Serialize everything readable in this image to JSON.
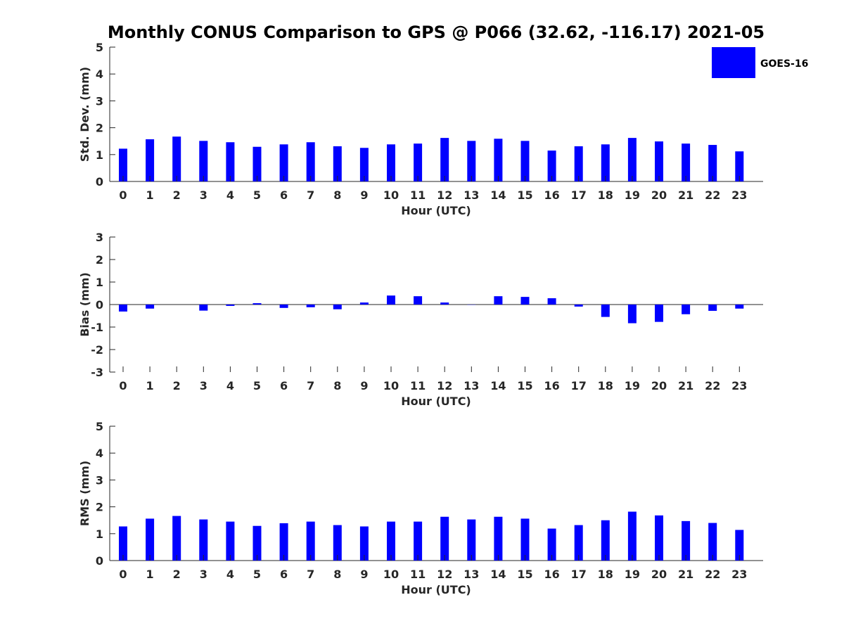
{
  "title": "Monthly CONUS Comparison to GPS @ P066 (32.62, -116.17) 2021-05",
  "legend": {
    "label": "GOES-16",
    "color": "#0000ff",
    "placement": "top-right"
  },
  "chart_data": [
    {
      "type": "bar",
      "xlabel": "Hour (UTC)",
      "ylabel": "Std. Dev. (mm)",
      "ylim": [
        0,
        5
      ],
      "yticks": [
        "0",
        "1",
        "2",
        "3",
        "4",
        "5"
      ],
      "categories": [
        "0",
        "1",
        "2",
        "3",
        "4",
        "5",
        "6",
        "7",
        "8",
        "9",
        "10",
        "11",
        "12",
        "13",
        "14",
        "15",
        "16",
        "17",
        "18",
        "19",
        "20",
        "21",
        "22",
        "23"
      ],
      "series": [
        {
          "name": "GOES-16",
          "color": "#0000ff",
          "values": [
            1.22,
            1.57,
            1.67,
            1.51,
            1.46,
            1.29,
            1.38,
            1.46,
            1.31,
            1.25,
            1.38,
            1.41,
            1.62,
            1.51,
            1.59,
            1.51,
            1.15,
            1.31,
            1.38,
            1.62,
            1.49,
            1.41,
            1.36,
            1.12
          ]
        }
      ],
      "grid": false
    },
    {
      "type": "bar",
      "xlabel": "Hour (UTC)",
      "ylabel": "Bias (mm)",
      "ylim": [
        -3,
        3
      ],
      "yticks": [
        "-3",
        "-2",
        "-1",
        "0",
        "1",
        "2",
        "3"
      ],
      "categories": [
        "0",
        "1",
        "2",
        "3",
        "4",
        "5",
        "6",
        "7",
        "8",
        "9",
        "10",
        "11",
        "12",
        "13",
        "14",
        "15",
        "16",
        "17",
        "18",
        "19",
        "20",
        "21",
        "22",
        "23"
      ],
      "series": [
        {
          "name": "GOES-16",
          "color": "#0000ff",
          "values": [
            -0.31,
            -0.18,
            0.0,
            -0.27,
            -0.06,
            0.06,
            -0.15,
            -0.12,
            -0.21,
            0.09,
            0.4,
            0.37,
            0.09,
            -0.01,
            0.37,
            0.34,
            0.28,
            -0.09,
            -0.55,
            -0.83,
            -0.77,
            -0.43,
            -0.28,
            -0.18
          ]
        }
      ],
      "grid": false
    },
    {
      "type": "bar",
      "xlabel": "Hour (UTC)",
      "ylabel": "RMS (mm)",
      "ylim": [
        0,
        5
      ],
      "yticks": [
        "0",
        "1",
        "2",
        "3",
        "4",
        "5"
      ],
      "categories": [
        "0",
        "1",
        "2",
        "3",
        "4",
        "5",
        "6",
        "7",
        "8",
        "9",
        "10",
        "11",
        "12",
        "13",
        "14",
        "15",
        "16",
        "17",
        "18",
        "19",
        "20",
        "21",
        "22",
        "23"
      ],
      "series": [
        {
          "name": "GOES-16",
          "color": "#0000ff",
          "values": [
            1.27,
            1.56,
            1.66,
            1.53,
            1.45,
            1.29,
            1.39,
            1.45,
            1.32,
            1.27,
            1.45,
            1.45,
            1.63,
            1.53,
            1.63,
            1.56,
            1.19,
            1.32,
            1.5,
            1.82,
            1.68,
            1.47,
            1.4,
            1.14
          ]
        }
      ],
      "grid": false
    }
  ]
}
